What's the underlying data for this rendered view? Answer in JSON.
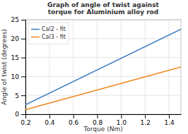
{
  "chart_data": {
    "type": "line",
    "title": "Graph of angle of twist against torque for Aluminium alloy rod",
    "xlabel": "Torque (Nm)",
    "ylabel": "Angle of twist (degrees)",
    "x": [
      0.2,
      1.5
    ],
    "series": [
      {
        "name": "Cal2 - fit",
        "color": "#3a7abf",
        "values": [
          2.5,
          22.5
        ]
      },
      {
        "name": "Cal3 - fit",
        "color": "#f0841a",
        "values": [
          1.2,
          12.5
        ]
      }
    ],
    "xlim": [
      0.2,
      1.5
    ],
    "ylim": [
      0,
      25
    ],
    "xticks": [
      0.2,
      0.4,
      0.6,
      0.8,
      {
        "value": 1.0,
        "label": "1.0"
      },
      1.2,
      1.4
    ],
    "yticks": [
      0,
      5,
      10,
      15,
      20,
      25
    ],
    "grid": true,
    "legend": "upper left"
  }
}
